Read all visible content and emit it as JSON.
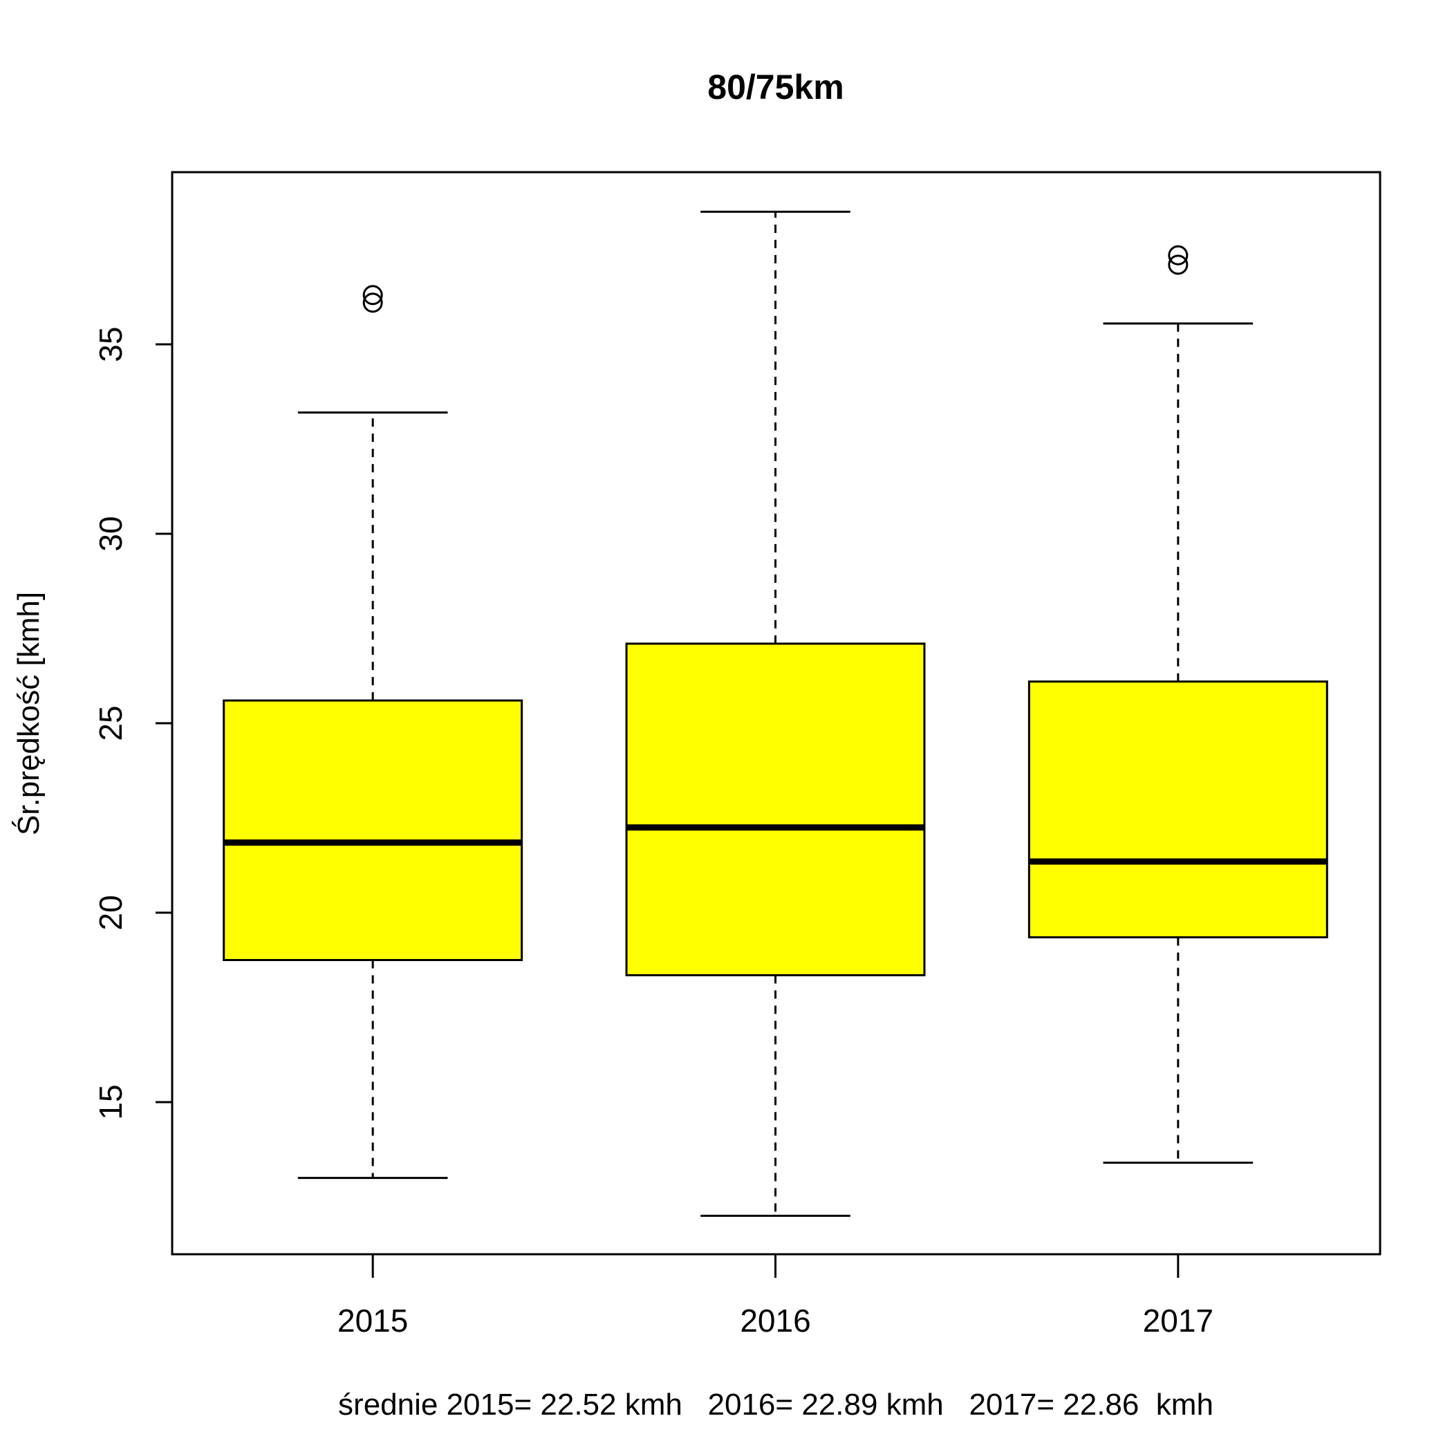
{
  "chart_data": {
    "type": "box",
    "title": "80/75km",
    "ylabel": "Śr.prędkość [kmh]",
    "xlabel": "średnie 2015= 22.52 kmh   2016= 22.89 kmh   2017= 22.86  kmh",
    "categories": [
      "2015",
      "2016",
      "2017"
    ],
    "ylim": [
      11,
      39.6
    ],
    "y_ticks": [
      15,
      20,
      25,
      30,
      35
    ],
    "y_tick_labels": [
      "15",
      "20",
      "25",
      "30",
      "35"
    ],
    "box_color": "#ffff00",
    "boxes": [
      {
        "category": "2015",
        "whisker_low": 13.0,
        "q1": 18.75,
        "median": 21.85,
        "q3": 25.6,
        "whisker_high": 33.2,
        "outliers": [
          36.1,
          36.3
        ]
      },
      {
        "category": "2016",
        "whisker_low": 12.0,
        "q1": 18.35,
        "median": 22.25,
        "q3": 27.1,
        "whisker_high": 38.5,
        "outliers": []
      },
      {
        "category": "2017",
        "whisker_low": 13.4,
        "q1": 19.35,
        "median": 21.35,
        "q3": 26.1,
        "whisker_high": 35.55,
        "outliers": [
          37.1,
          37.35
        ]
      }
    ],
    "grid": false,
    "legend": "none"
  }
}
